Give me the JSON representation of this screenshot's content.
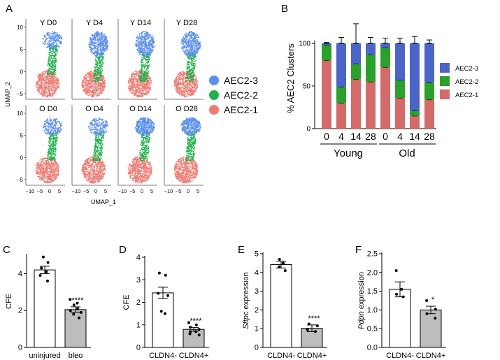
{
  "colors": {
    "aec2_3": "#4a64c8",
    "aec2_2": "#2aa12a",
    "aec2_1": "#d46a6a",
    "umap_blue": "#5b8ff0",
    "umap_green": "#22b14c",
    "umap_red": "#f07a72",
    "gray_bar": "#bdbdbd"
  },
  "panel_a": {
    "letter": "A",
    "xlabel": "UMAP_1",
    "ylabel": "UMAP_2",
    "y_ticks": [
      "10",
      "5",
      "0",
      "−5"
    ],
    "x_ticks": [
      "−10",
      "−5",
      "0",
      "5"
    ],
    "top_titles": [
      "Y D0",
      "Y D4",
      "Y D14",
      "Y D28"
    ],
    "bottom_titles": [
      "O D0",
      "O D4",
      "O D14",
      "O D28"
    ],
    "legend": [
      "AEC2-3",
      "AEC2-2",
      "AEC2-1"
    ]
  },
  "chart_data": [
    {
      "type": "bar",
      "panel": "B",
      "title": "",
      "ylabel": "% AEC2 Clusters",
      "ylim": [
        0,
        100
      ],
      "yticks": [
        "0",
        "50",
        "100"
      ],
      "categories": [
        "0",
        "4",
        "14",
        "28",
        "0",
        "4",
        "14",
        "28"
      ],
      "groups": [
        "Young",
        "Old"
      ],
      "stacked": true,
      "series": [
        {
          "name": "AEC2-1",
          "values": [
            80,
            30,
            58,
            55,
            72,
            36,
            15,
            34
          ],
          "err": [
            1,
            2,
            5,
            2,
            1,
            2,
            2,
            3
          ]
        },
        {
          "name": "AEC2-2",
          "values": [
            18,
            19,
            18,
            32,
            23,
            21,
            6,
            20
          ],
          "err": [
            2,
            2,
            2,
            2,
            2,
            2,
            2,
            2
          ]
        },
        {
          "name": "AEC2-3",
          "values": [
            2,
            51,
            24,
            13,
            5,
            43,
            79,
            46
          ],
          "err": [
            1,
            7,
            23,
            7,
            6,
            6,
            8,
            4
          ]
        }
      ],
      "legend": [
        "AEC2-3",
        "AEC2-2",
        "AEC2-1"
      ]
    },
    {
      "type": "bar",
      "panel": "C",
      "ylabel": "CFE",
      "ylim": [
        0,
        5
      ],
      "yticks": [
        "0",
        "2",
        "4"
      ],
      "categories": [
        "uninjured",
        "bleo"
      ],
      "values": [
        4.2,
        2.05
      ],
      "err": [
        0.2,
        0.15
      ],
      "points": [
        [
          4.9,
          4.6,
          4.3,
          4.1,
          3.9,
          3.6
        ],
        [
          2.6,
          2.4,
          2.3,
          2.1,
          2.0,
          1.9,
          1.8,
          1.6
        ]
      ],
      "significance": "****"
    },
    {
      "type": "bar",
      "panel": "D",
      "ylabel": "CFE",
      "ylim": [
        0,
        4
      ],
      "yticks": [
        "0",
        "1",
        "2",
        "3",
        "4"
      ],
      "categories": [
        "CLDN4-",
        "CLDN4+"
      ],
      "values": [
        2.42,
        0.8
      ],
      "err": [
        0.25,
        0.08
      ],
      "points": [
        [
          3.3,
          3.2,
          2.4,
          2.3,
          1.6,
          1.5
        ],
        [
          1.1,
          1.0,
          0.9,
          0.8,
          0.7,
          0.7,
          0.6,
          0.55
        ]
      ],
      "significance": "****"
    },
    {
      "type": "bar",
      "panel": "E",
      "ylabel_italic": "Sftpc",
      "ylabel_rest": " expression",
      "ylim": [
        0,
        5
      ],
      "yticks": [
        "0",
        "1",
        "2",
        "3",
        "4",
        "5"
      ],
      "categories": [
        "CLDN4-",
        "CLDN4+"
      ],
      "values": [
        4.42,
        1.02
      ],
      "err": [
        0.18,
        0.18
      ],
      "points": [
        [
          4.7,
          4.5,
          4.3,
          4.1
        ],
        [
          1.25,
          1.15,
          0.95,
          0.85
        ]
      ],
      "significance": "****"
    },
    {
      "type": "bar",
      "panel": "F",
      "ylabel_italic": "Pdpn",
      "ylabel_rest": " expression",
      "ylim": [
        0,
        2.5
      ],
      "yticks": [
        "0.0",
        "0.5",
        "1.0",
        "1.5",
        "2.0",
        "2.5"
      ],
      "categories": [
        "CLDN4-",
        "CLDN4+"
      ],
      "values": [
        1.55,
        1.0
      ],
      "err": [
        0.2,
        0.1
      ],
      "points": [
        [
          2.05,
          1.55,
          1.42,
          1.35
        ],
        [
          1.25,
          1.02,
          0.9,
          0.78
        ]
      ],
      "significance": "*"
    }
  ]
}
